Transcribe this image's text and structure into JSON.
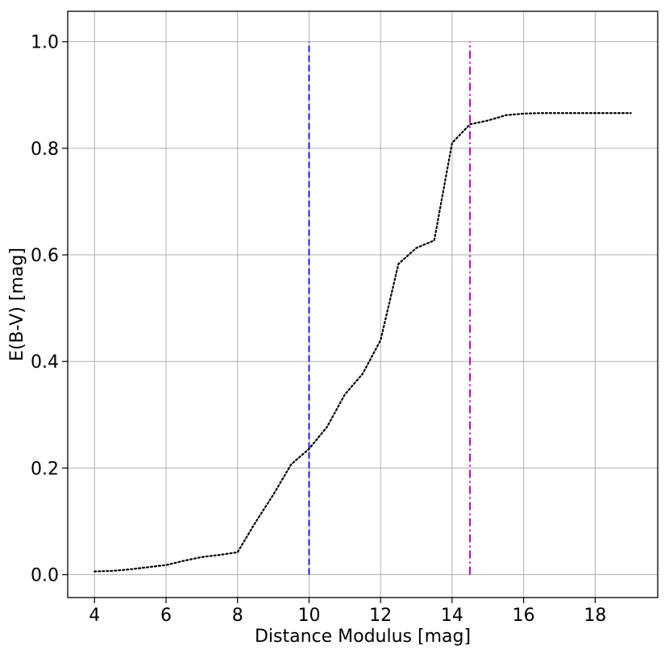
{
  "chart_data": {
    "type": "line",
    "title": "",
    "xlabel": "Distance Modulus [mag]",
    "ylabel": "E(B-V) [mag]",
    "xlim": [
      3.25,
      19.75
    ],
    "ylim": [
      -0.043,
      1.057
    ],
    "grid": true,
    "x_ticks": [
      4,
      6,
      8,
      10,
      12,
      14,
      16,
      18
    ],
    "x_tick_labels": [
      "4",
      "6",
      "8",
      "10",
      "12",
      "14",
      "16",
      "18"
    ],
    "y_ticks": [
      0.0,
      0.2,
      0.4,
      0.6,
      0.8,
      1.0
    ],
    "y_tick_labels": [
      "0.0",
      "0.2",
      "0.4",
      "0.6",
      "0.8",
      "1.0"
    ],
    "series": [
      {
        "style": "dotted",
        "color": "#000000",
        "x": [
          4.0,
          4.5,
          5.0,
          5.5,
          6.0,
          6.5,
          7.0,
          7.5,
          8.0,
          8.5,
          9.0,
          9.5,
          10.0,
          10.5,
          11.0,
          11.5,
          12.0,
          12.5,
          13.0,
          13.5,
          14.0,
          14.5,
          15.0,
          15.5,
          16.0,
          16.5,
          17.0,
          17.5,
          18.0,
          18.5,
          19.0
        ],
        "y": [
          0.006,
          0.007,
          0.01,
          0.014,
          0.018,
          0.026,
          0.033,
          0.037,
          0.042,
          0.098,
          0.15,
          0.207,
          0.236,
          0.277,
          0.338,
          0.377,
          0.44,
          0.583,
          0.613,
          0.627,
          0.81,
          0.845,
          0.852,
          0.862,
          0.865,
          0.866,
          0.866,
          0.866,
          0.866,
          0.866,
          0.866
        ]
      }
    ],
    "vlines": [
      {
        "x": 10.0,
        "ymin": 0.0,
        "ymax": 1.0,
        "color": "#1f1fe6",
        "style": "dashed"
      },
      {
        "x": 14.5,
        "ymin": 0.0,
        "ymax": 1.0,
        "color": "#c000c0",
        "style": "dashdot"
      }
    ]
  }
}
